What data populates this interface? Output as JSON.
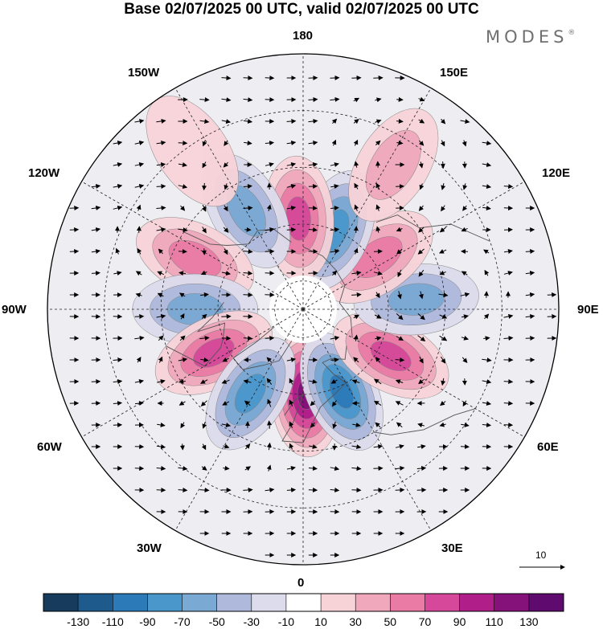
{
  "title": "Base 02/07/2025 00 UTC, valid 02/07/2025 00 UTC",
  "brand": {
    "name": "MODES",
    "mark": "®"
  },
  "longitude_labels": {
    "top": "180",
    "bottom": "0",
    "left": "90W",
    "right": "90E",
    "top_left": "150W",
    "top_right": "150E",
    "upper_left": "120W",
    "upper_right": "120E",
    "lower_left": "60W",
    "lower_right": "60E",
    "bottom_left": "30W",
    "bottom_right": "30E"
  },
  "vector_scale": {
    "label": "10"
  },
  "colorbar": {
    "labels": [
      "-130",
      "-110",
      "-90",
      "-70",
      "-50",
      "-30",
      "-10",
      "10",
      "30",
      "50",
      "70",
      "90",
      "110",
      "130"
    ],
    "colors": [
      "#163b5c",
      "#1e5b8c",
      "#2d7ab8",
      "#4a97cc",
      "#7aa9d4",
      "#aeb9dc",
      "#dcdcec",
      "#ffffff",
      "#f7d3d8",
      "#f0a8bd",
      "#e97ba5",
      "#d5489a",
      "#b01e8a",
      "#85117a",
      "#5e0a6e"
    ]
  },
  "anomaly_centers": [
    {
      "lon": 2,
      "lat": 60,
      "value": 115
    },
    {
      "lon": 25,
      "lat": 58,
      "value": -100
    },
    {
      "lon": 62,
      "lat": 55,
      "value": 85
    },
    {
      "lon": 95,
      "lat": 50,
      "value": -65
    },
    {
      "lon": 125,
      "lat": 58,
      "value": 65
    },
    {
      "lon": 158,
      "lat": 60,
      "value": -75
    },
    {
      "lon": 183,
      "lat": 58,
      "value": 70
    },
    {
      "lon": 210,
      "lat": 50,
      "value": -50
    },
    {
      "lon": 148,
      "lat": 30,
      "value": 30
    },
    {
      "lon": 245,
      "lat": 48,
      "value": 55
    },
    {
      "lon": 270,
      "lat": 52,
      "value": -60
    },
    {
      "lon": 296,
      "lat": 55,
      "value": 80
    },
    {
      "lon": 328,
      "lat": 55,
      "value": -85
    },
    {
      "lon": 215,
      "lat": 22,
      "value": 20
    }
  ]
}
